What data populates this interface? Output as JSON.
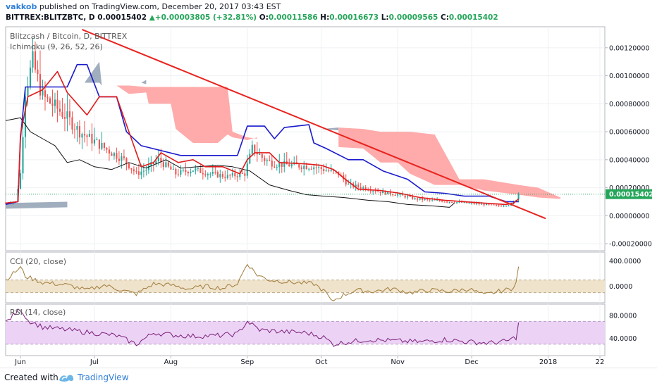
{
  "header": {
    "author": "vakkob",
    "published_text": "published on TradingView.com, December 20, 2017 03:43 EST",
    "symbol": "BITTREX:BLITZBTC, D",
    "price": "0.00015402",
    "change": "+0.00003805 (+32.81%)",
    "o_label": "O:",
    "o_value": "0.00011586",
    "h_label": "H:",
    "h_value": "0.00016673",
    "l_label": "L:",
    "l_value": "0.00009565",
    "c_label": "C:",
    "c_value": "0.00015402"
  },
  "footer": {
    "created_with": "Created with",
    "brand": "TradingView"
  },
  "colors": {
    "candle_up": "#26a69a",
    "candle_down": "#ef5350",
    "tenkan": "#e01b1b",
    "kijun": "#1a1acc",
    "chikou": "#111111",
    "cloud_bull": "#8fa0b3",
    "cloud_bear": "#ff9c9c",
    "trendline": "#e8231f",
    "cci_line": "#a07b3a",
    "cci_band": "#efe3cc",
    "rsi_line": "#7b1f7b",
    "rsi_band": "#ecd3f5",
    "last_price_bg": "#26a65b"
  },
  "chart_data": [
    {
      "type": "candlestick",
      "title": "Blitzcash / Bitcoin, D, BITTREX",
      "indicator_label": "Ichimoku (9, 26, 52, 26)",
      "x_range": [
        "2017-05-26",
        "2018-01-24"
      ],
      "ylim": [
        -0.00025,
        0.00135
      ],
      "y_ticks": [
        -0.0002,
        0.0,
        0.0002,
        0.0004,
        0.0006,
        0.0008,
        0.001,
        0.0012
      ],
      "y_tick_labels": [
        "-0.00020000",
        "0.00000000",
        "0.00020000",
        "0.00040000",
        "0.00060000",
        "0.00080000",
        "0.00100000",
        "0.00120000"
      ],
      "last_price": 0.00015402,
      "last_price_label": "0.00015402",
      "close_keyframes": [
        [
          "2017-05-26",
          9e-05
        ],
        [
          "2017-05-30",
          0.0001
        ],
        [
          "2017-06-01",
          0.0003
        ],
        [
          "2017-06-03",
          0.0009
        ],
        [
          "2017-06-06",
          0.0011
        ],
        [
          "2017-06-10",
          0.00085
        ],
        [
          "2017-06-15",
          0.00078
        ],
        [
          "2017-06-20",
          0.0007
        ],
        [
          "2017-06-25",
          0.0006
        ],
        [
          "2017-07-02",
          0.00052
        ],
        [
          "2017-07-08",
          0.00045
        ],
        [
          "2017-07-13",
          0.0004
        ],
        [
          "2017-07-18",
          0.0003
        ],
        [
          "2017-07-22",
          0.00033
        ],
        [
          "2017-07-27",
          0.0004
        ],
        [
          "2017-08-03",
          0.0003
        ],
        [
          "2017-08-10",
          0.00033
        ],
        [
          "2017-08-17",
          0.0003
        ],
        [
          "2017-08-24",
          0.00028
        ],
        [
          "2017-08-31",
          0.0003
        ],
        [
          "2017-09-03",
          0.00048
        ],
        [
          "2017-09-08",
          0.0004
        ],
        [
          "2017-09-12",
          0.00037
        ],
        [
          "2017-09-20",
          0.00036
        ],
        [
          "2017-09-28",
          0.00035
        ],
        [
          "2017-10-04",
          0.00032
        ],
        [
          "2017-10-08",
          0.0003
        ],
        [
          "2017-10-12",
          0.00022
        ],
        [
          "2017-10-18",
          0.0002
        ],
        [
          "2017-10-25",
          0.00017
        ],
        [
          "2017-11-01",
          0.00015
        ],
        [
          "2017-11-08",
          0.00012
        ],
        [
          "2017-11-15",
          0.00011
        ],
        [
          "2017-11-22",
          0.0001
        ],
        [
          "2017-11-29",
          9e-05
        ],
        [
          "2017-12-06",
          8e-05
        ],
        [
          "2017-12-12",
          7e-05
        ],
        [
          "2017-12-17",
          8e-05
        ],
        [
          "2017-12-19",
          0.00011586
        ],
        [
          "2017-12-20",
          0.00015402
        ]
      ],
      "tenkan_keyframes": [
        [
          "2017-05-26",
          9e-05
        ],
        [
          "2017-05-31",
          0.0001
        ],
        [
          "2017-06-01",
          0.00058
        ],
        [
          "2017-06-04",
          0.00085
        ],
        [
          "2017-06-10",
          0.0009
        ],
        [
          "2017-06-16",
          0.00103
        ],
        [
          "2017-06-20",
          0.00088
        ],
        [
          "2017-06-24",
          0.0008
        ],
        [
          "2017-06-28",
          0.00072
        ],
        [
          "2017-07-03",
          0.00085
        ],
        [
          "2017-07-10",
          0.00085
        ],
        [
          "2017-07-15",
          0.0006
        ],
        [
          "2017-07-20",
          0.00035
        ],
        [
          "2017-07-25",
          0.00038
        ],
        [
          "2017-07-28",
          0.00045
        ],
        [
          "2017-08-04",
          0.00038
        ],
        [
          "2017-08-10",
          0.0004
        ],
        [
          "2017-08-15",
          0.00035
        ],
        [
          "2017-08-22",
          0.00035
        ],
        [
          "2017-08-29",
          0.0003
        ],
        [
          "2017-09-01",
          0.0004
        ],
        [
          "2017-09-04",
          0.00045
        ],
        [
          "2017-09-10",
          0.00045
        ],
        [
          "2017-09-14",
          0.00038
        ],
        [
          "2017-09-25",
          0.00037
        ],
        [
          "2017-10-01",
          0.00036
        ],
        [
          "2017-10-06",
          0.00033
        ],
        [
          "2017-10-10",
          0.00027
        ],
        [
          "2017-10-16",
          0.00019
        ],
        [
          "2017-10-25",
          0.00018
        ],
        [
          "2017-11-02",
          0.00016
        ],
        [
          "2017-11-10",
          0.00013
        ],
        [
          "2017-11-20",
          0.00011
        ],
        [
          "2017-11-28",
          0.0001
        ],
        [
          "2017-12-06",
          9e-05
        ],
        [
          "2017-12-15",
          8e-05
        ],
        [
          "2017-12-18",
          9e-05
        ],
        [
          "2017-12-20",
          0.00012
        ]
      ],
      "kijun_keyframes": [
        [
          "2017-05-26",
          8e-05
        ],
        [
          "2017-05-31",
          0.0001
        ],
        [
          "2017-06-01",
          0.00055
        ],
        [
          "2017-06-03",
          0.00092
        ],
        [
          "2017-06-15",
          0.00092
        ],
        [
          "2017-06-20",
          0.00092
        ],
        [
          "2017-06-24",
          0.00108
        ],
        [
          "2017-06-28",
          0.00108
        ],
        [
          "2017-07-03",
          0.00085
        ],
        [
          "2017-07-10",
          0.00085
        ],
        [
          "2017-07-14",
          0.0006
        ],
        [
          "2017-07-20",
          0.0005
        ],
        [
          "2017-08-05",
          0.00043
        ],
        [
          "2017-08-20",
          0.00043
        ],
        [
          "2017-08-28",
          0.00043
        ],
        [
          "2017-09-01",
          0.00064
        ],
        [
          "2017-09-08",
          0.00064
        ],
        [
          "2017-09-12",
          0.00055
        ],
        [
          "2017-09-16",
          0.00063
        ],
        [
          "2017-09-26",
          0.00065
        ],
        [
          "2017-09-28",
          0.00052
        ],
        [
          "2017-10-03",
          0.00048
        ],
        [
          "2017-10-12",
          0.0004
        ],
        [
          "2017-10-18",
          0.0004
        ],
        [
          "2017-10-26",
          0.00032
        ],
        [
          "2017-11-05",
          0.00026
        ],
        [
          "2017-11-12",
          0.00017
        ],
        [
          "2017-11-20",
          0.00016
        ],
        [
          "2017-11-28",
          0.00014
        ],
        [
          "2017-12-08",
          0.00014
        ],
        [
          "2017-12-15",
          0.0001
        ],
        [
          "2017-12-20",
          0.0001
        ]
      ],
      "chikou_keyframes": [
        [
          "2017-05-26",
          0.00068
        ],
        [
          "2017-06-01",
          0.0007
        ],
        [
          "2017-06-05",
          0.0006
        ],
        [
          "2017-06-10",
          0.00055
        ],
        [
          "2017-06-15",
          0.0005
        ],
        [
          "2017-06-20",
          0.00038
        ],
        [
          "2017-06-25",
          0.0004
        ],
        [
          "2017-07-01",
          0.00035
        ],
        [
          "2017-07-08",
          0.00033
        ],
        [
          "2017-07-15",
          0.00038
        ],
        [
          "2017-07-22",
          0.00034
        ],
        [
          "2017-07-30",
          0.0004
        ],
        [
          "2017-08-05",
          0.00034
        ],
        [
          "2017-08-12",
          0.00035
        ],
        [
          "2017-08-20",
          0.00036
        ],
        [
          "2017-08-26",
          0.00035
        ],
        [
          "2017-09-02",
          0.00032
        ],
        [
          "2017-09-10",
          0.00022
        ],
        [
          "2017-09-18",
          0.00018
        ],
        [
          "2017-09-25",
          0.00015
        ],
        [
          "2017-10-02",
          0.00014
        ],
        [
          "2017-10-10",
          0.00013
        ],
        [
          "2017-10-20",
          0.00011
        ],
        [
          "2017-10-28",
          0.0001
        ],
        [
          "2017-11-05",
          8e-05
        ],
        [
          "2017-11-15",
          7e-05
        ],
        [
          "2017-11-22",
          6e-05
        ],
        [
          "2017-11-24",
          9e-05
        ]
      ],
      "cloud_bull_segments": [
        [
          [
            "2017-05-26",
            9e-05,
            5e-05
          ],
          [
            "2017-06-20",
            0.0001,
            6e-05
          ]
        ],
        [
          [
            "2017-06-27",
            0.00095,
            0.00095
          ],
          [
            "2017-07-03",
            0.0011,
            0.00095
          ],
          [
            "2017-07-04",
            0.00093,
            0.00093
          ]
        ],
        [
          [
            "2017-07-20",
            0.00095,
            0.00095
          ],
          [
            "2017-07-22",
            0.00097,
            0.00094
          ]
        ],
        [
          [
            "2017-10-01",
            0.00062,
            0.00062
          ],
          [
            "2017-10-08",
            0.00063,
            0.00061
          ]
        ]
      ],
      "cloud_bear_segments": [
        [
          [
            "2017-07-10",
            0.00093,
            0.00093
          ],
          [
            "2017-07-15",
            0.00093,
            0.00087
          ],
          [
            "2017-07-22",
            0.00092,
            0.00088
          ],
          [
            "2017-07-23",
            0.00092,
            0.0008
          ],
          [
            "2017-08-01",
            0.00092,
            0.0008
          ],
          [
            "2017-08-03",
            0.00092,
            0.00062
          ],
          [
            "2017-08-10",
            0.00092,
            0.00052
          ],
          [
            "2017-08-20",
            0.00092,
            0.00052
          ],
          [
            "2017-08-24",
            0.00092,
            0.00058
          ],
          [
            "2017-08-26",
            0.0006,
            0.00056
          ],
          [
            "2017-09-01",
            0.00056,
            0.00054
          ],
          [
            "2017-09-05",
            0.00055,
            0.00056
          ]
        ],
        [
          [
            "2017-10-08",
            0.00063,
            0.00049
          ],
          [
            "2017-10-18",
            0.00062,
            0.00048
          ],
          [
            "2017-10-25",
            0.0006,
            0.00038
          ],
          [
            "2017-11-01",
            0.0006,
            0.00038
          ],
          [
            "2017-11-06",
            0.0006,
            0.0003
          ],
          [
            "2017-11-16",
            0.00058,
            0.00022
          ],
          [
            "2017-11-26",
            0.00026,
            0.00022
          ],
          [
            "2017-12-06",
            0.00026,
            0.00018
          ],
          [
            "2017-12-20",
            0.00022,
            0.00015
          ],
          [
            "2017-12-28",
            0.0002,
            0.00013
          ],
          [
            "2018-01-06",
            0.00013,
            0.00012
          ]
        ]
      ],
      "trendline": {
        "from": [
          "2017-06-26",
          0.00133
        ],
        "to": [
          "2017-12-31",
          -2e-05
        ]
      }
    },
    {
      "type": "line",
      "title": "CCI (20, close)",
      "ylim": [
        -260,
        540
      ],
      "y_ticks": [
        0,
        400
      ],
      "y_tick_labels": [
        "0.0000",
        "400.0000"
      ],
      "band": [
        -100,
        100
      ],
      "keyframes": [
        [
          "2017-05-26",
          100
        ],
        [
          "2017-06-01",
          300
        ],
        [
          "2017-06-03",
          160
        ],
        [
          "2017-06-10",
          60
        ],
        [
          "2017-06-20",
          20
        ],
        [
          "2017-06-28",
          -60
        ],
        [
          "2017-07-05",
          20
        ],
        [
          "2017-07-12",
          -60
        ],
        [
          "2017-07-18",
          -120
        ],
        [
          "2017-07-25",
          40
        ],
        [
          "2017-08-01",
          20
        ],
        [
          "2017-08-08",
          -40
        ],
        [
          "2017-08-15",
          0
        ],
        [
          "2017-08-22",
          -30
        ],
        [
          "2017-08-28",
          40
        ],
        [
          "2017-09-01",
          360
        ],
        [
          "2017-09-05",
          180
        ],
        [
          "2017-09-10",
          100
        ],
        [
          "2017-09-20",
          60
        ],
        [
          "2017-09-28",
          40
        ],
        [
          "2017-10-03",
          -100
        ],
        [
          "2017-10-05",
          -240
        ],
        [
          "2017-10-10",
          -140
        ],
        [
          "2017-10-15",
          -60
        ],
        [
          "2017-10-22",
          -80
        ],
        [
          "2017-10-30",
          -40
        ],
        [
          "2017-11-06",
          -100
        ],
        [
          "2017-11-14",
          -60
        ],
        [
          "2017-11-22",
          -80
        ],
        [
          "2017-11-30",
          -40
        ],
        [
          "2017-12-06",
          -140
        ],
        [
          "2017-12-12",
          -80
        ],
        [
          "2017-12-17",
          -40
        ],
        [
          "2017-12-19",
          60
        ],
        [
          "2017-12-20",
          310
        ]
      ]
    },
    {
      "type": "line",
      "title": "RSI (14, close)",
      "ylim": [
        10,
        100
      ],
      "y_ticks": [
        40,
        80
      ],
      "y_tick_labels": [
        "40.0000",
        "80.0000"
      ],
      "band": [
        30,
        70
      ],
      "keyframes": [
        [
          "2017-05-26",
          68
        ],
        [
          "2017-06-01",
          92
        ],
        [
          "2017-06-04",
          72
        ],
        [
          "2017-06-10",
          60
        ],
        [
          "2017-06-20",
          55
        ],
        [
          "2017-06-30",
          50
        ],
        [
          "2017-07-10",
          45
        ],
        [
          "2017-07-18",
          30
        ],
        [
          "2017-07-25",
          50
        ],
        [
          "2017-08-02",
          46
        ],
        [
          "2017-08-10",
          44
        ],
        [
          "2017-08-20",
          45
        ],
        [
          "2017-08-28",
          48
        ],
        [
          "2017-09-01",
          70
        ],
        [
          "2017-09-06",
          55
        ],
        [
          "2017-09-15",
          52
        ],
        [
          "2017-09-25",
          50
        ],
        [
          "2017-10-02",
          42
        ],
        [
          "2017-10-06",
          30
        ],
        [
          "2017-10-12",
          34
        ],
        [
          "2017-10-20",
          38
        ],
        [
          "2017-10-30",
          36
        ],
        [
          "2017-11-10",
          34
        ],
        [
          "2017-11-20",
          38
        ],
        [
          "2017-11-30",
          34
        ],
        [
          "2017-12-08",
          32
        ],
        [
          "2017-12-15",
          35
        ],
        [
          "2017-12-19",
          42
        ],
        [
          "2017-12-20",
          68
        ]
      ]
    }
  ],
  "x_axis": {
    "ticks": [
      [
        "2017-06-01",
        "Jun"
      ],
      [
        "2017-07-01",
        "Jul"
      ],
      [
        "2017-08-01",
        "Aug"
      ],
      [
        "2017-09-01",
        "Sep"
      ],
      [
        "2017-10-01",
        "Oct"
      ],
      [
        "2017-11-01",
        "Nov"
      ],
      [
        "2017-12-01",
        "Dec"
      ],
      [
        "2018-01-01",
        "2018"
      ],
      [
        "2018-01-22",
        "22"
      ]
    ]
  }
}
